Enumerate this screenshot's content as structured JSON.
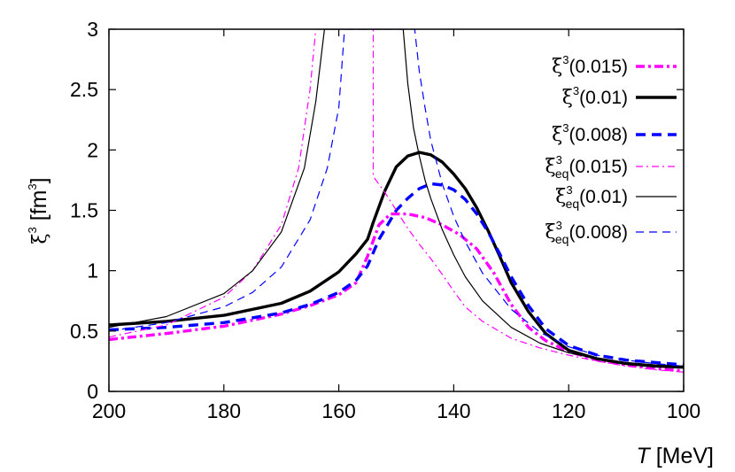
{
  "chart_data": {
    "type": "line",
    "title": "",
    "xlabel": {
      "italic": "T",
      "rest": "[MeV]"
    },
    "ylabel": {
      "symbol": "ξ",
      "sup": "3",
      "unit": "[fm",
      "unit_sup": "3",
      "close": "]"
    },
    "xlim": [
      200,
      100
    ],
    "ylim": [
      0,
      3
    ],
    "x_reversed": true,
    "xticks": [
      "200",
      "180",
      "160",
      "140",
      "120",
      "100"
    ],
    "yticks": [
      "0",
      "0.5",
      "1",
      "1.5",
      "2",
      "2.5",
      "3"
    ],
    "grid": false,
    "legend_position": "top-right",
    "series": [
      {
        "name": "ξ3(0.015)",
        "legend": {
          "symbol": "ξ",
          "sup": "3",
          "sub": "",
          "arg": "(0.015)"
        },
        "color": "#ff00ff",
        "style": "dash-dot",
        "weight": "thick",
        "x": [
          200,
          190,
          180,
          170,
          165,
          160,
          157,
          155,
          153,
          151,
          148,
          145,
          142,
          139,
          136,
          133,
          130,
          127,
          124,
          120,
          115,
          110,
          105,
          100
        ],
        "y": [
          0.43,
          0.48,
          0.54,
          0.64,
          0.71,
          0.8,
          0.9,
          1.12,
          1.38,
          1.47,
          1.47,
          1.44,
          1.38,
          1.3,
          1.18,
          0.98,
          0.72,
          0.53,
          0.42,
          0.33,
          0.26,
          0.22,
          0.19,
          0.17
        ]
      },
      {
        "name": "ξ3(0.01)",
        "legend": {
          "symbol": "ξ",
          "sup": "3",
          "sub": "",
          "arg": "(0.01)"
        },
        "color": "#000000",
        "style": "solid",
        "weight": "thick",
        "x": [
          200,
          190,
          180,
          170,
          165,
          160,
          157,
          155,
          154,
          152,
          150,
          148,
          146,
          144,
          142,
          140,
          138,
          136,
          134,
          132,
          130,
          127,
          124,
          120,
          115,
          110,
          105,
          100
        ],
        "y": [
          0.55,
          0.58,
          0.63,
          0.73,
          0.83,
          0.99,
          1.14,
          1.26,
          1.4,
          1.66,
          1.86,
          1.95,
          1.98,
          1.96,
          1.9,
          1.8,
          1.68,
          1.52,
          1.33,
          1.12,
          0.9,
          0.66,
          0.48,
          0.34,
          0.27,
          0.23,
          0.21,
          0.2
        ]
      },
      {
        "name": "ξ3(0.008)",
        "legend": {
          "symbol": "ξ",
          "sup": "3",
          "sub": "",
          "arg": "(0.008)"
        },
        "color": "#0000ff",
        "style": "dashed",
        "weight": "thick",
        "x": [
          200,
          190,
          180,
          170,
          165,
          160,
          157,
          155,
          153,
          150,
          148,
          146,
          144,
          142,
          140,
          138,
          136,
          134,
          132,
          130,
          127,
          124,
          120,
          115,
          110,
          105,
          100
        ],
        "y": [
          0.51,
          0.53,
          0.57,
          0.65,
          0.72,
          0.82,
          0.92,
          1.04,
          1.26,
          1.5,
          1.6,
          1.68,
          1.72,
          1.71,
          1.67,
          1.59,
          1.47,
          1.32,
          1.14,
          0.95,
          0.71,
          0.52,
          0.38,
          0.3,
          0.26,
          0.24,
          0.22
        ]
      },
      {
        "name": "ξ3eq(0.015)",
        "legend": {
          "symbol": "ξ",
          "sup": "3",
          "sub": "eq",
          "arg": "(0.015)"
        },
        "color": "#ff00ff",
        "style": "dash-dot",
        "weight": "thin",
        "x": [
          200,
          190,
          180,
          175,
          170,
          167,
          165,
          164,
          154,
          154,
          152,
          150,
          148,
          146,
          144,
          142,
          140,
          138,
          135,
          130,
          125,
          120,
          115,
          110,
          105,
          100
        ],
        "y": [
          0.45,
          0.55,
          0.78,
          1.0,
          1.38,
          1.85,
          2.5,
          3.0,
          3.0,
          1.78,
          1.65,
          1.5,
          1.35,
          1.22,
          1.1,
          0.97,
          0.83,
          0.7,
          0.58,
          0.44,
          0.36,
          0.3,
          0.25,
          0.21,
          0.18,
          0.16
        ]
      },
      {
        "name": "ξ3eq(0.01)",
        "legend": {
          "symbol": "ξ",
          "sup": "3",
          "sub": "eq",
          "arg": "(0.01)"
        },
        "color": "#000000",
        "style": "solid",
        "weight": "thin",
        "x": [
          200,
          190,
          180,
          175,
          170,
          166,
          164,
          162.5,
          148.8,
          148,
          147,
          146,
          145,
          144,
          142,
          140,
          138,
          135,
          130,
          125,
          120,
          115,
          110,
          105,
          100
        ],
        "y": [
          0.53,
          0.62,
          0.81,
          1.0,
          1.32,
          1.85,
          2.4,
          3.0,
          3.0,
          2.55,
          2.18,
          1.95,
          1.75,
          1.6,
          1.34,
          1.13,
          0.95,
          0.75,
          0.53,
          0.4,
          0.32,
          0.27,
          0.24,
          0.22,
          0.21
        ]
      },
      {
        "name": "ξ3eq(0.008)",
        "legend": {
          "symbol": "ξ",
          "sup": "3",
          "sub": "eq",
          "arg": "(0.008)"
        },
        "color": "#0000ff",
        "style": "dashed",
        "weight": "thin",
        "x": [
          200,
          190,
          180,
          175,
          170,
          165,
          162,
          160,
          159,
          146.8,
          146,
          145,
          144,
          142,
          140,
          138,
          135,
          130,
          125,
          120,
          115,
          110,
          105,
          100
        ],
        "y": [
          0.5,
          0.57,
          0.7,
          0.82,
          1.03,
          1.42,
          1.85,
          2.35,
          3.0,
          3.0,
          2.65,
          2.35,
          2.08,
          1.72,
          1.45,
          1.24,
          0.98,
          0.68,
          0.49,
          0.37,
          0.3,
          0.26,
          0.23,
          0.21
        ]
      }
    ]
  }
}
